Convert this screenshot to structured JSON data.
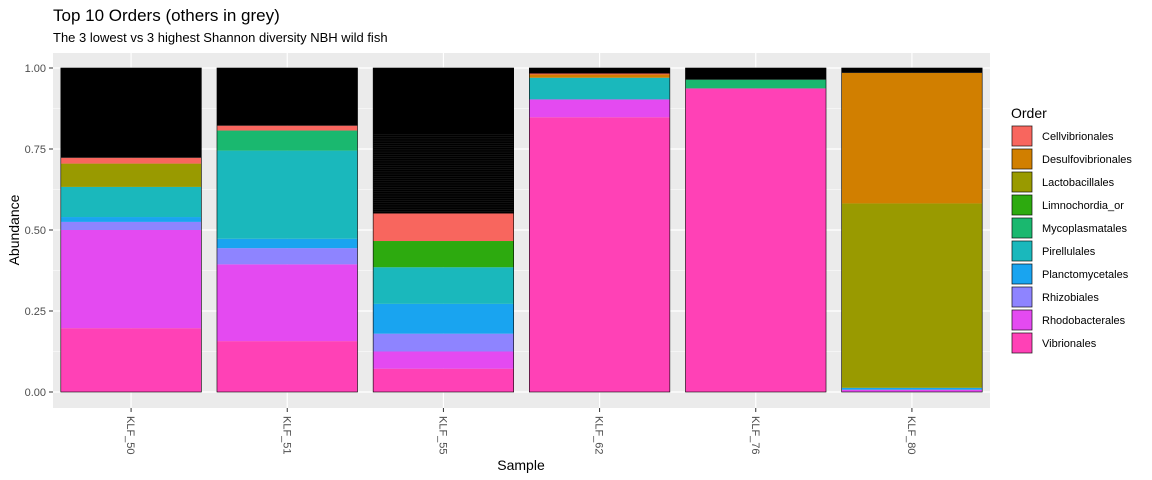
{
  "chart_data": {
    "type": "bar",
    "stacked": true,
    "title": "Top 10 Orders (others in grey)",
    "subtitle": "The 3 lowest vs 3 highest Shannon diversity NBH wild fish",
    "xlabel": "Sample",
    "ylabel": "Abundance",
    "ylim": [
      0,
      1
    ],
    "grid": true,
    "y_ticks": [
      "0.00",
      "0.25",
      "0.50",
      "0.75",
      "1.00"
    ],
    "y_tick_values": [
      0,
      0.25,
      0.5,
      0.75,
      1.0
    ],
    "categories": [
      "KLF_50",
      "KLF_51",
      "KLF_55",
      "KLF_62",
      "KLF_76",
      "KLF_80"
    ],
    "legend_title": "Order",
    "legend_position": "right",
    "others_color": "#000000",
    "series": [
      {
        "name": "Vibrionales",
        "color": "#FF41B6",
        "values": [
          0.197,
          0.157,
          0.072,
          0.848,
          0.937,
          0.0
        ]
      },
      {
        "name": "Rhodobacterales",
        "color": "#E44AF1",
        "values": [
          0.303,
          0.237,
          0.053,
          0.055,
          0.0,
          0.007
        ]
      },
      {
        "name": "Rhizobiales",
        "color": "#8E84FF",
        "values": [
          0.025,
          0.05,
          0.055,
          0.0,
          0.0,
          0.0
        ]
      },
      {
        "name": "Planctomycetales",
        "color": "#19A4F0",
        "values": [
          0.015,
          0.029,
          0.092,
          0.0,
          0.0,
          0.006
        ]
      },
      {
        "name": "Pirellulales",
        "color": "#1AB8BC",
        "values": [
          0.093,
          0.272,
          0.113,
          0.067,
          0.0,
          0.0
        ]
      },
      {
        "name": "Mycoplasmatales",
        "color": "#1AB86F",
        "values": [
          0.0,
          0.062,
          0.0,
          0.0,
          0.027,
          0.0
        ]
      },
      {
        "name": "Limnochordia_or",
        "color": "#2DAA0F",
        "values": [
          0.0,
          0.0,
          0.081,
          0.0,
          0.0,
          0.0
        ]
      },
      {
        "name": "Lactobacillales",
        "color": "#999A00",
        "values": [
          0.072,
          0.0,
          0.0,
          0.0,
          0.0,
          0.569
        ]
      },
      {
        "name": "Desulfovibrionales",
        "color": "#D17F00",
        "values": [
          0.0,
          0.0,
          0.0,
          0.01,
          0.0,
          0.403
        ]
      },
      {
        "name": "Cellvibrionales",
        "color": "#F8665E",
        "values": [
          0.018,
          0.015,
          0.085,
          0.003,
          0.0,
          0.0
        ]
      }
    ],
    "legend_order": [
      "Cellvibrionales",
      "Desulfovibrionales",
      "Lactobacillales",
      "Limnochordia_or",
      "Mycoplasmatales",
      "Pirellulales",
      "Planctomycetales",
      "Rhizobiales",
      "Rhodobacterales",
      "Vibrionales"
    ]
  }
}
